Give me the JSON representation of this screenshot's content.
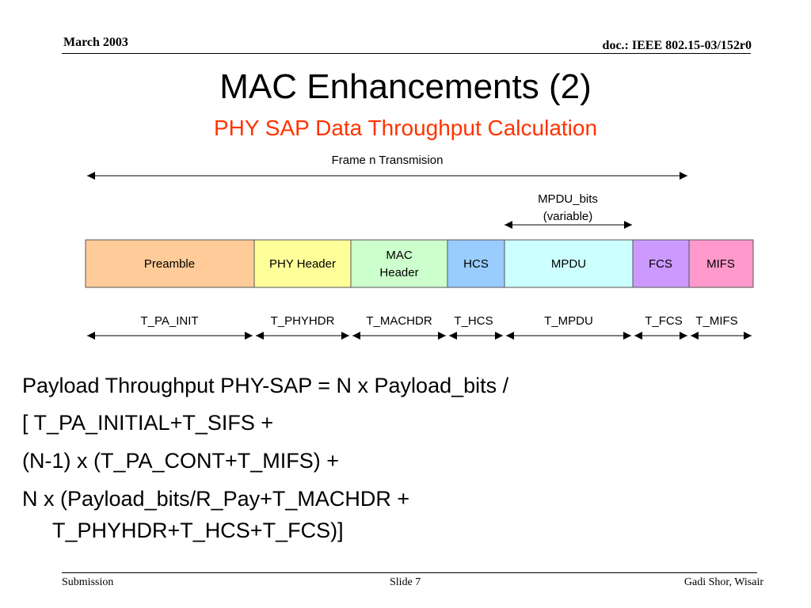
{
  "header": {
    "date": "March 2003",
    "doc": "doc.: IEEE 802.15-03/152r0"
  },
  "title": "MAC Enhancements (2)",
  "subtitle": "PHY SAP Data Throughput Calculation",
  "diagram": {
    "frame_label": "Frame n Transmision",
    "mpdu_bits_label_line1": "MPDU_bits",
    "mpdu_bits_label_line2": "(variable)",
    "segments": [
      {
        "label": "Preamble",
        "color": "#ffcc99"
      },
      {
        "label": "PHY Header",
        "color": "#ffff99"
      },
      {
        "label_line1": "MAC",
        "label_line2": "Header",
        "color": "#ccffcc"
      },
      {
        "label": "HCS",
        "color": "#99ccff"
      },
      {
        "label": "MPDU",
        "color": "#ccffff"
      },
      {
        "label": "FCS",
        "color": "#cc99ff"
      },
      {
        "label": "MIFS",
        "color": "#ff99cc"
      }
    ],
    "timings": [
      "T_PA_INIT",
      "T_PHYHDR",
      "T_MACHDR",
      "T_HCS",
      "T_MPDU",
      "T_FCS",
      "T_MIFS"
    ]
  },
  "body": {
    "line1": "Payload Throughput PHY-SAP =  N x Payload_bits /",
    "line2": "[ T_PA_INITIAL+T_SIFS +",
    "line3": "(N-1) x (T_PA_CONT+T_MIFS) +",
    "line4": "N x (Payload_bits/R_Pay+T_MACHDR +",
    "line5": "T_PHYHDR+T_HCS+T_FCS)]"
  },
  "footer": {
    "left": "Submission",
    "center": "Slide 7",
    "right": "Gadi Shor, Wisair"
  }
}
